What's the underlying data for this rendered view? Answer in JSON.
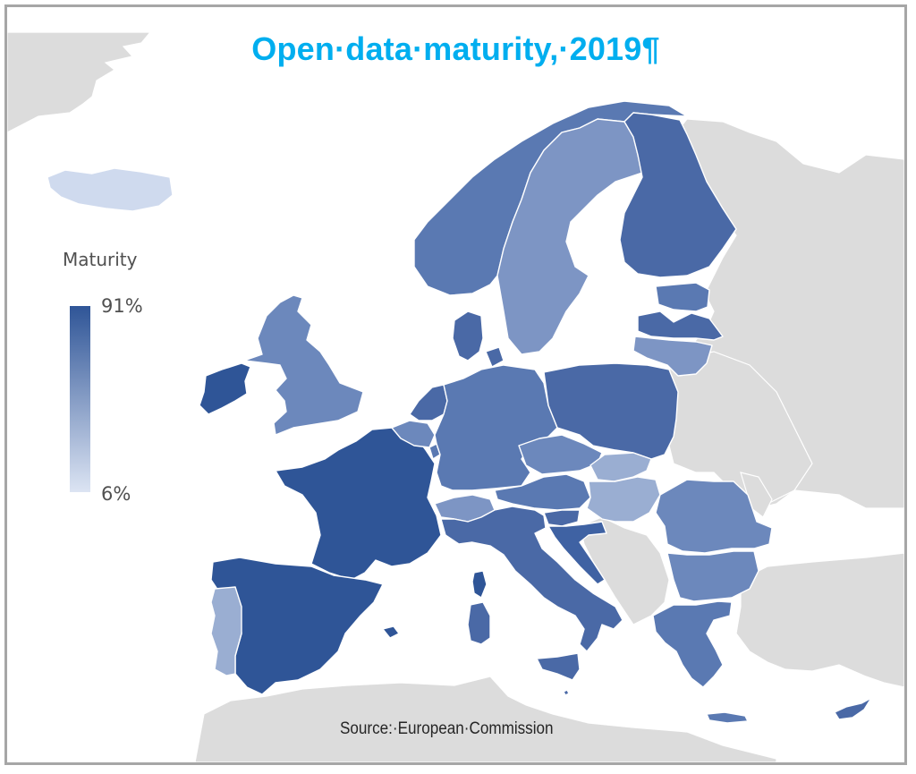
{
  "title": "Open·data·maturity,·2019¶",
  "legend": {
    "title": "Maturity",
    "max_label": "91%",
    "min_label": "6%",
    "max_color": "#2f5597",
    "min_color": "#dce4f3"
  },
  "source": "Source:·European·Commission",
  "colors": {
    "title": "#00aeef",
    "non_eu_land": "#dcdcdc",
    "sea": "#ffffff",
    "frame": "#a6a6a6",
    "shades": {
      "darkest": "#2f5597",
      "dark": "#3f62a3",
      "mid_dark": "#4a69a6",
      "mid": "#5a79b2",
      "mid_light": "#6c88bc",
      "light": "#7d95c4",
      "lighter": "#9aaed2",
      "lightest": "#cfdaee"
    }
  }
}
